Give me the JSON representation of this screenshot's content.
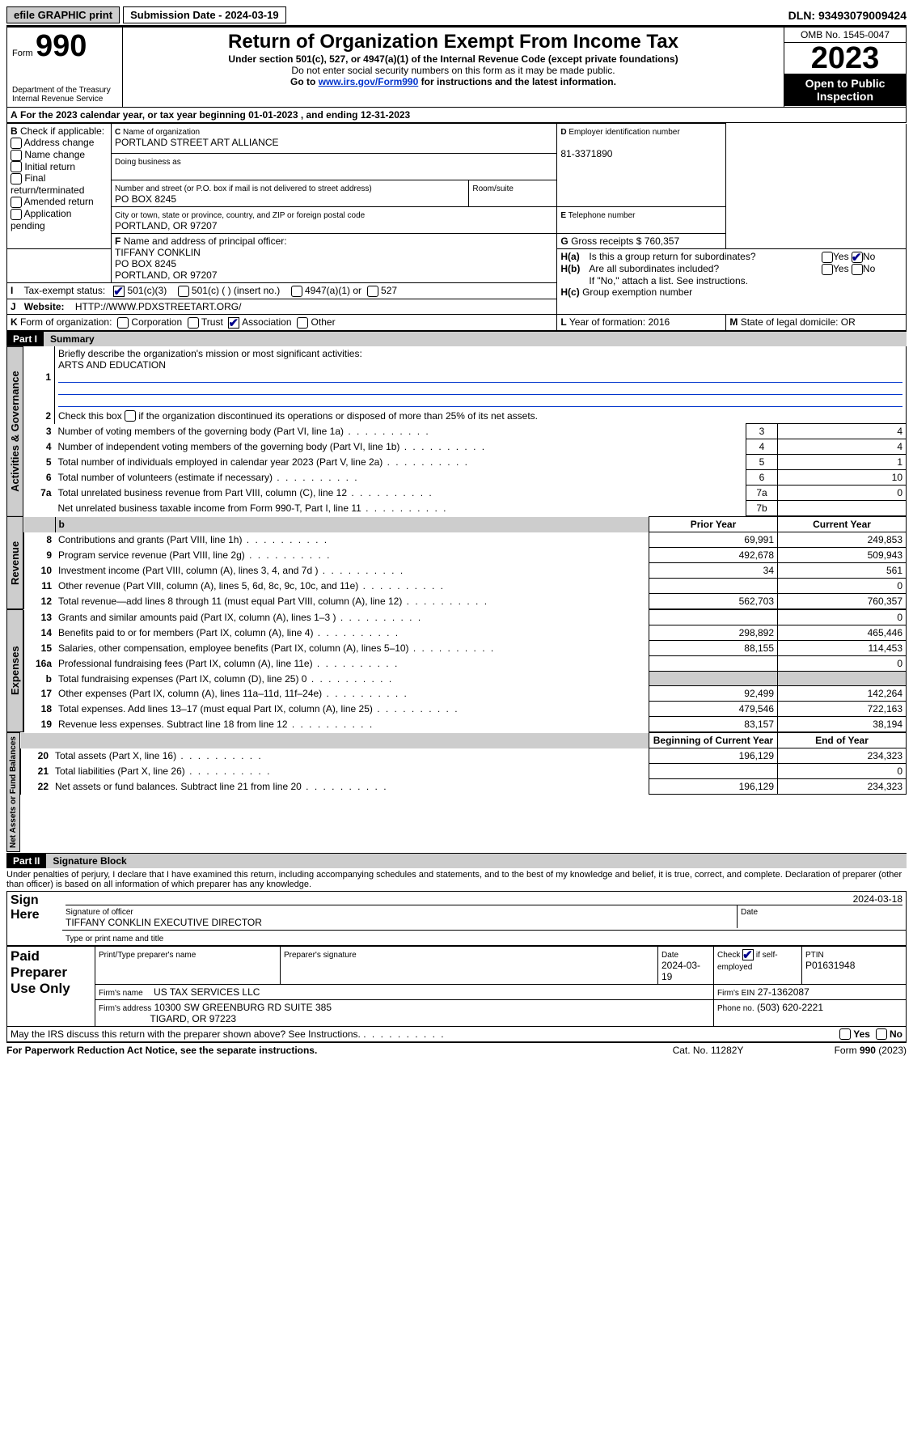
{
  "top": {
    "efile": "efile GRAPHIC print",
    "submission": "Submission Date - 2024-03-19",
    "dln": "DLN: 93493079009424"
  },
  "hdr": {
    "form": "Form",
    "num": "990",
    "dept1": "Department of the Treasury",
    "dept2": "Internal Revenue Service",
    "title": "Return of Organization Exempt From Income Tax",
    "sub1": "Under section 501(c), 527, or 4947(a)(1) of the Internal Revenue Code (except private foundations)",
    "sub2": "Do not enter social security numbers on this form as it may be made public.",
    "sub3a": "Go to ",
    "sub3link": "www.irs.gov/Form990",
    "sub3b": " for instructions and the latest information.",
    "omb": "OMB No. 1545-0047",
    "year": "2023",
    "open": "Open to Public Inspection"
  },
  "A": {
    "text": "For the 2023 calendar year, or tax year beginning 01-01-2023   , and ending 12-31-2023"
  },
  "B": {
    "label": "Check if applicable:",
    "items": [
      "Address change",
      "Name change",
      "Initial return",
      "Final return/terminated",
      "Amended return",
      "Application pending"
    ]
  },
  "C": {
    "nameLbl": "Name of organization",
    "name": "PORTLAND STREET ART ALLIANCE",
    "dbaLbl": "Doing business as",
    "addrLbl": "Number and street (or P.O. box if mail is not delivered to street address)",
    "addr": "PO BOX 8245",
    "roomLbl": "Room/suite",
    "cityLbl": "City or town, state or province, country, and ZIP or foreign postal code",
    "city": "PORTLAND, OR  97207"
  },
  "D": {
    "lbl": "Employer identification number",
    "val": "81-3371890"
  },
  "E": {
    "lbl": "Telephone number"
  },
  "G": {
    "lbl": "Gross receipts $",
    "val": "760,357"
  },
  "F": {
    "lbl": "Name and address of principal officer:",
    "l1": "TIFFANY CONKLIN",
    "l2": "PO BOX 8245",
    "l3": "PORTLAND, OR  97207"
  },
  "H": {
    "a": "Is this a group return for subordinates?",
    "b": "Are all subordinates included?",
    "note": "If \"No,\" attach a list. See instructions.",
    "c": "Group exemption number",
    "yes": "Yes",
    "no": "No"
  },
  "I": {
    "lbl": "Tax-exempt status:",
    "o1": "501(c)(3)",
    "o2": "501(c) (  ) (insert no.)",
    "o3": "4947(a)(1) or",
    "o4": "527"
  },
  "J": {
    "lbl": "Website:",
    "val": "HTTP://WWW.PDXSTREETART.ORG/"
  },
  "K": {
    "lbl": "Form of organization:",
    "o1": "Corporation",
    "o2": "Trust",
    "o3": "Association",
    "o4": "Other"
  },
  "L": {
    "lbl": "Year of formation:",
    "val": "2016"
  },
  "M": {
    "lbl": "State of legal domicile:",
    "val": "OR"
  },
  "part1": {
    "hdr": "Part I",
    "title": "Summary"
  },
  "s1": {
    "l1": "Briefly describe the organization's mission or most significant activities:",
    "mission": "ARTS AND EDUCATION",
    "l2": "Check this box      if the organization discontinued its operations or disposed of more than 25% of its net assets.",
    "rows_gov": [
      {
        "n": "3",
        "t": "Number of voting members of the governing body (Part VI, line 1a)",
        "b": "3",
        "v": "4"
      },
      {
        "n": "4",
        "t": "Number of independent voting members of the governing body (Part VI, line 1b)",
        "b": "4",
        "v": "4"
      },
      {
        "n": "5",
        "t": "Total number of individuals employed in calendar year 2023 (Part V, line 2a)",
        "b": "5",
        "v": "1"
      },
      {
        "n": "6",
        "t": "Total number of volunteers (estimate if necessary)",
        "b": "6",
        "v": "10"
      },
      {
        "n": "7a",
        "t": "Total unrelated business revenue from Part VIII, column (C), line 12",
        "b": "7a",
        "v": "0"
      },
      {
        "n": "",
        "t": "Net unrelated business taxable income from Form 990-T, Part I, line 11",
        "b": "7b",
        "v": ""
      }
    ],
    "col_prior": "Prior Year",
    "col_curr": "Current Year",
    "rows_rev": [
      {
        "n": "8",
        "t": "Contributions and grants (Part VIII, line 1h)",
        "p": "69,991",
        "c": "249,853"
      },
      {
        "n": "9",
        "t": "Program service revenue (Part VIII, line 2g)",
        "p": "492,678",
        "c": "509,943"
      },
      {
        "n": "10",
        "t": "Investment income (Part VIII, column (A), lines 3, 4, and 7d )",
        "p": "34",
        "c": "561"
      },
      {
        "n": "11",
        "t": "Other revenue (Part VIII, column (A), lines 5, 6d, 8c, 9c, 10c, and 11e)",
        "p": "",
        "c": "0"
      },
      {
        "n": "12",
        "t": "Total revenue—add lines 8 through 11 (must equal Part VIII, column (A), line 12)",
        "p": "562,703",
        "c": "760,357"
      }
    ],
    "rows_exp": [
      {
        "n": "13",
        "t": "Grants and similar amounts paid (Part IX, column (A), lines 1–3 )",
        "p": "",
        "c": "0"
      },
      {
        "n": "14",
        "t": "Benefits paid to or for members (Part IX, column (A), line 4)",
        "p": "298,892",
        "c": "465,446"
      },
      {
        "n": "15",
        "t": "Salaries, other compensation, employee benefits (Part IX, column (A), lines 5–10)",
        "p": "88,155",
        "c": "114,453"
      },
      {
        "n": "16a",
        "t": "Professional fundraising fees (Part IX, column (A), line 11e)",
        "p": "",
        "c": "0"
      },
      {
        "n": "b",
        "t": "Total fundraising expenses (Part IX, column (D), line 25) 0",
        "p": "shade",
        "c": "shade"
      },
      {
        "n": "17",
        "t": "Other expenses (Part IX, column (A), lines 11a–11d, 11f–24e)",
        "p": "92,499",
        "c": "142,264"
      },
      {
        "n": "18",
        "t": "Total expenses. Add lines 13–17 (must equal Part IX, column (A), line 25)",
        "p": "479,546",
        "c": "722,163"
      },
      {
        "n": "19",
        "t": "Revenue less expenses. Subtract line 18 from line 12",
        "p": "83,157",
        "c": "38,194"
      }
    ],
    "col_beg": "Beginning of Current Year",
    "col_end": "End of Year",
    "rows_net": [
      {
        "n": "20",
        "t": "Total assets (Part X, line 16)",
        "p": "196,129",
        "c": "234,323"
      },
      {
        "n": "21",
        "t": "Total liabilities (Part X, line 26)",
        "p": "",
        "c": "0"
      },
      {
        "n": "22",
        "t": "Net assets or fund balances. Subtract line 21 from line 20",
        "p": "196,129",
        "c": "234,323"
      }
    ]
  },
  "vlabels": {
    "gov": "Activities & Governance",
    "rev": "Revenue",
    "exp": "Expenses",
    "net": "Net Assets or Fund Balances"
  },
  "part2": {
    "hdr": "Part II",
    "title": "Signature Block"
  },
  "perjury": "Under penalties of perjury, I declare that I have examined this return, including accompanying schedules and statements, and to the best of my knowledge and belief, it is true, correct, and complete. Declaration of preparer (other than officer) is based on all information of which preparer has any knowledge.",
  "sign": {
    "here": "Sign Here",
    "sigLbl": "Signature of officer",
    "name": "TIFFANY CONKLIN  EXECUTIVE DIRECTOR",
    "typeLbl": "Type or print name and title",
    "dateLbl": "Date",
    "date": "2024-03-18"
  },
  "paid": {
    "lbl": "Paid Preparer Use Only",
    "c1": "Print/Type preparer's name",
    "c2": "Preparer's signature",
    "c3": "Date",
    "c3v": "2024-03-19",
    "c4": "Check        if self-employed",
    "c5": "PTIN",
    "c5v": "P01631948",
    "firmLbl": "Firm's name",
    "firm": "US TAX SERVICES LLC",
    "einLbl": "Firm's EIN",
    "ein": "27-1362087",
    "addrLbl": "Firm's address",
    "addr1": "10300 SW GREENBURG RD SUITE 385",
    "addr2": "TIGARD, OR  97223",
    "phoneLbl": "Phone no.",
    "phone": "(503) 620-2221"
  },
  "discuss": "May the IRS discuss this return with the preparer shown above? See Instructions.",
  "footer": {
    "l": "For Paperwork Reduction Act Notice, see the separate instructions.",
    "m": "Cat. No. 11282Y",
    "r1": "Form ",
    "r2": "990",
    "r3": " (2023)"
  }
}
